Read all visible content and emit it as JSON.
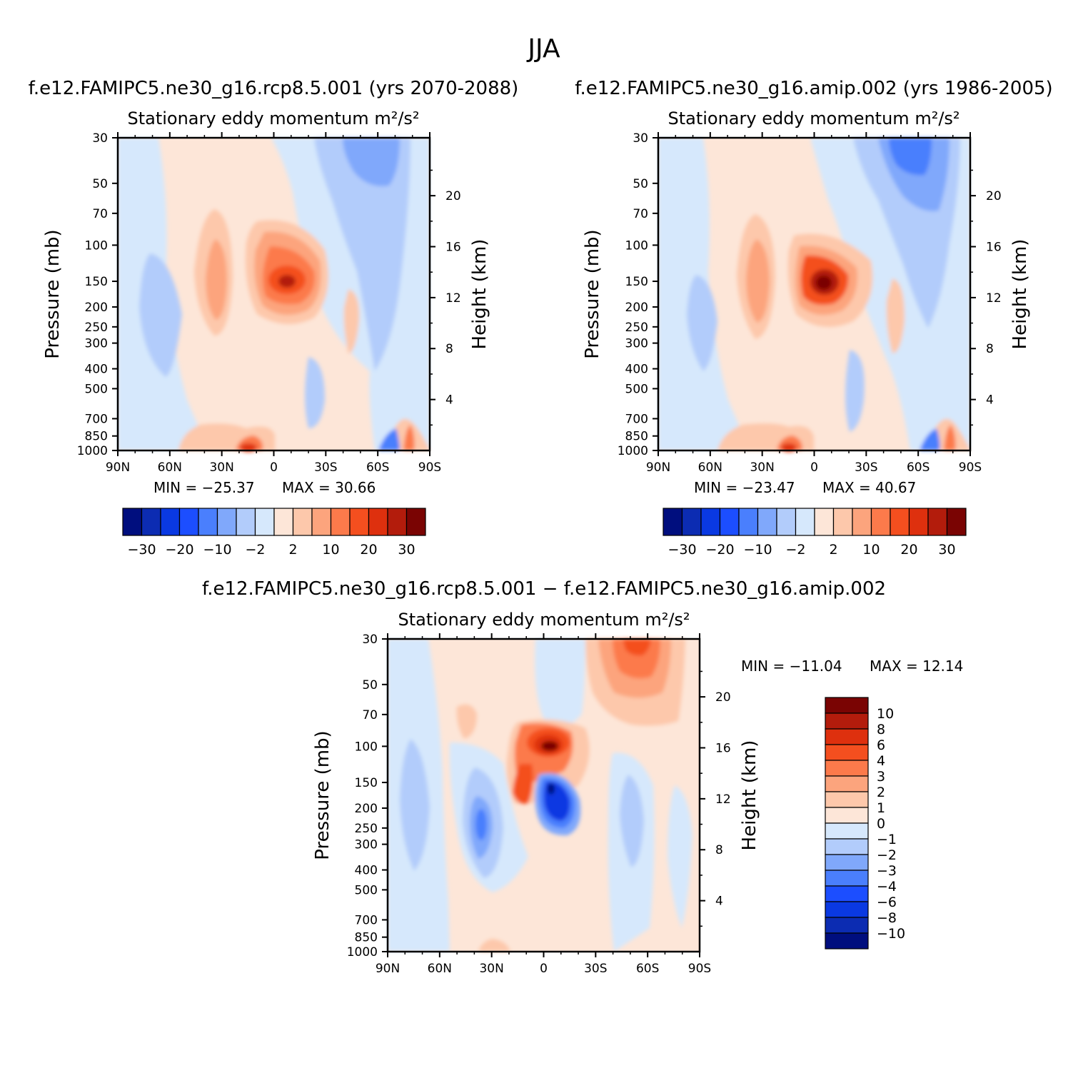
{
  "figure": {
    "title": "JJA",
    "diff_title": "f.e12.FAMIPC5.ne30_g16.rcp8.5.001 − f.e12.FAMIPC5.ne30_g16.amip.002"
  },
  "chart_data": [
    {
      "type": "heatmap",
      "id": "rcp85",
      "case_title": "f.e12.FAMIPC5.ne30_g16.rcp8.5.001 (yrs 2070-2088)",
      "title": "Stationary eddy momentum m²/s²",
      "xlabel": "",
      "ylabel": "Pressure (mb)",
      "ylabel_right": "Height (km)",
      "x_tick_labels": [
        "90N",
        "60N",
        "30N",
        "0",
        "30S",
        "60S",
        "90S"
      ],
      "x_range": [
        90,
        -90
      ],
      "y_tick_values": [
        30,
        50,
        70,
        100,
        150,
        200,
        250,
        300,
        400,
        500,
        700,
        850,
        1000
      ],
      "y_range": [
        30,
        1000
      ],
      "y_scale": "log",
      "height_tick_values": [
        4,
        8,
        12,
        16,
        20
      ],
      "min_text": "MIN = −25.37",
      "max_text": "MAX = 30.66",
      "min": -25.37,
      "max": 30.66,
      "colorbar_orientation": "horizontal",
      "colorbar_labels": [
        "−30",
        "−20",
        "−10",
        "−2",
        "2",
        "10",
        "20",
        "30"
      ],
      "features": [
        {
          "name": "equatorial-upper-max",
          "lat": -5,
          "p": 150,
          "value": 30.66
        },
        {
          "name": "nh-subtropical-positive",
          "lat": 30,
          "p": 150,
          "value": 10
        },
        {
          "name": "sh-polar-upper-negative",
          "lat": -50,
          "p": 35,
          "value": -12
        },
        {
          "name": "nh-surface-positive",
          "lat": 12,
          "p": 1000,
          "value": 25
        },
        {
          "name": "nh-midlat-negative",
          "lat": 60,
          "p": 200,
          "value": -4
        },
        {
          "name": "sh-surface-min",
          "lat": -68,
          "p": 950,
          "value": -25.37
        }
      ]
    },
    {
      "type": "heatmap",
      "id": "amip",
      "case_title": "f.e12.FAMIPC5.ne30_g16.amip.002 (yrs 1986-2005)",
      "title": "Stationary eddy momentum m²/s²",
      "xlabel": "",
      "ylabel": "Pressure (mb)",
      "ylabel_right": "Height (km)",
      "x_tick_labels": [
        "90N",
        "60N",
        "30N",
        "0",
        "30S",
        "60S",
        "90S"
      ],
      "x_range": [
        90,
        -90
      ],
      "y_tick_values": [
        30,
        50,
        70,
        100,
        150,
        200,
        250,
        300,
        400,
        500,
        700,
        850,
        1000
      ],
      "y_range": [
        30,
        1000
      ],
      "y_scale": "log",
      "height_tick_values": [
        4,
        8,
        12,
        16,
        20
      ],
      "min_text": "MIN = −23.47",
      "max_text": "MAX = 40.67",
      "min": -23.47,
      "max": 40.67,
      "colorbar_orientation": "horizontal",
      "colorbar_labels": [
        "−30",
        "−20",
        "−10",
        "−2",
        "2",
        "10",
        "20",
        "30"
      ],
      "features": [
        {
          "name": "equatorial-upper-max",
          "lat": -5,
          "p": 150,
          "value": 40.67
        },
        {
          "name": "nh-subtropical-positive",
          "lat": 30,
          "p": 150,
          "value": 10
        },
        {
          "name": "sh-polar-upper-negative",
          "lat": -55,
          "p": 35,
          "value": -20
        },
        {
          "name": "nh-surface-positive",
          "lat": 12,
          "p": 1000,
          "value": 25
        },
        {
          "name": "sh-surface-min",
          "lat": -68,
          "p": 950,
          "value": -23.47
        }
      ]
    },
    {
      "type": "heatmap",
      "id": "diff",
      "case_title": "",
      "title": "Stationary eddy momentum m²/s²",
      "xlabel": "",
      "ylabel": "Pressure (mb)",
      "ylabel_right": "Height (km)",
      "x_tick_labels": [
        "90N",
        "60N",
        "30N",
        "0",
        "30S",
        "60S",
        "90S"
      ],
      "x_range": [
        90,
        -90
      ],
      "y_tick_values": [
        30,
        50,
        70,
        100,
        150,
        200,
        250,
        300,
        400,
        500,
        700,
        850,
        1000
      ],
      "y_range": [
        30,
        1000
      ],
      "y_scale": "log",
      "height_tick_values": [
        4,
        8,
        12,
        16,
        20
      ],
      "min_text": "MIN = −11.04",
      "max_text": "MAX = 12.14",
      "min": -11.04,
      "max": 12.14,
      "colorbar_orientation": "vertical",
      "colorbar_labels": [
        "10",
        "8",
        "6",
        "4",
        "3",
        "2",
        "1",
        "0",
        "−1",
        "−2",
        "−3",
        "−4",
        "−6",
        "−8",
        "−10"
      ],
      "features": [
        {
          "name": "equatorial-upper-max",
          "lat": 0,
          "p": 100,
          "value": 12.14
        },
        {
          "name": "equatorial-min",
          "lat": -5,
          "p": 180,
          "value": -11.04
        },
        {
          "name": "sh-polar-upper-positive",
          "lat": -50,
          "p": 35,
          "value": 6
        },
        {
          "name": "nh-subtropical-negative",
          "lat": 35,
          "p": 220,
          "value": -5
        }
      ]
    }
  ],
  "colormaps": {
    "main": {
      "levels": [
        -30,
        -25,
        -20,
        -15,
        -10,
        -5,
        -2,
        0,
        2,
        5,
        10,
        15,
        20,
        25,
        30
      ],
      "colors": [
        "#000e7e",
        "#0c2cb2",
        "#0a39e2",
        "#1c4eff",
        "#4a7ffd",
        "#80a8fb",
        "#b2ccfb",
        "#d6e8fc",
        "#fde6d8",
        "#fdc8ab",
        "#fca47d",
        "#fc7a4b",
        "#f44f1f",
        "#de300e",
        "#b31c0c",
        "#7a0403"
      ]
    },
    "diff": {
      "levels": [
        -10,
        -8,
        -6,
        -4,
        -3,
        -2,
        -1,
        0,
        1,
        2,
        3,
        4,
        6,
        8,
        10
      ],
      "colors": [
        "#000e7e",
        "#0c2cb2",
        "#0a39e2",
        "#1c4eff",
        "#4a7ffd",
        "#80a8fb",
        "#b2ccfb",
        "#d6e8fc",
        "#fde6d8",
        "#fdc8ab",
        "#fca47d",
        "#fc7a4b",
        "#f44f1f",
        "#de300e",
        "#b31c0c",
        "#7a0403"
      ]
    }
  }
}
